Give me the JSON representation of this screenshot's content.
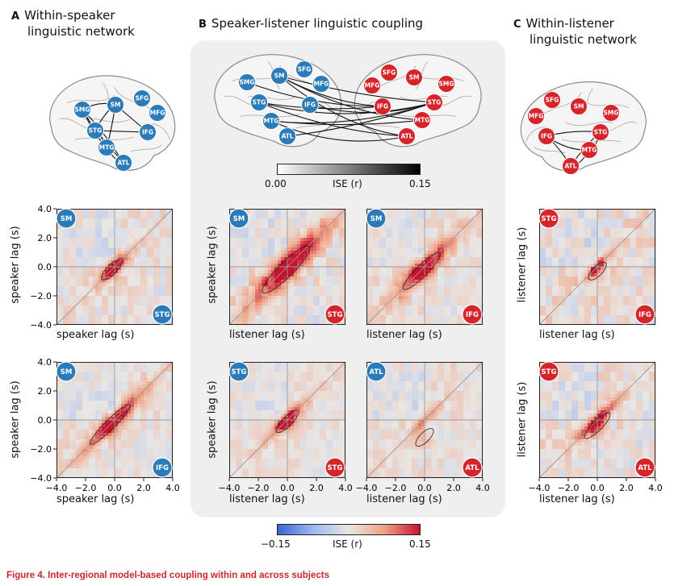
{
  "panels": {
    "A": {
      "letter": "A",
      "title_line1": "Within-speaker",
      "title_line2": "linguistic network"
    },
    "B": {
      "letter": "B",
      "title": "Speaker-listener linguistic coupling"
    },
    "C": {
      "letter": "C",
      "title_line1": "Within-listener",
      "title_line2": "linguistic network"
    }
  },
  "colors": {
    "speaker": "#2b7bb9",
    "listener": "#d6242b",
    "panel_bg": "#efefef",
    "caption": "#c8272c"
  },
  "brain_nodes": {
    "A": [
      "SMG",
      "SM",
      "SFG",
      "MFG",
      "STG",
      "IFG",
      "MTG",
      "ATL"
    ],
    "B_left": [
      "SM",
      "SFG",
      "SMG",
      "MFG",
      "STG",
      "IFG",
      "MTG",
      "ATL"
    ],
    "B_right": [
      "SFG",
      "SM",
      "MFG",
      "SMG",
      "IFG",
      "STG",
      "MTG",
      "ATL"
    ],
    "C": [
      "SFG",
      "SM",
      "MFG",
      "SMG",
      "IFG",
      "STG",
      "MTG",
      "ATL"
    ]
  },
  "gray_colorbar": {
    "min_label": "0.00",
    "max_label": "0.15",
    "label": "ISE (r)"
  },
  "diverging_colorbar": {
    "min_label": "−0.15",
    "max_label": "0.15",
    "label": "ISE (r)"
  },
  "axes": {
    "ticks": [
      "−4.0",
      "−2.0",
      "0.0",
      "2.0",
      "4.0"
    ],
    "speaker_lag": "speaker lag (s)",
    "listener_lag": "listener lag (s)"
  },
  "plots": [
    {
      "id": "A1",
      "top_region": "SM",
      "top_side": "speaker",
      "bottom_region": "STG",
      "bottom_side": "speaker"
    },
    {
      "id": "A2",
      "top_region": "SM",
      "top_side": "speaker",
      "bottom_region": "IFG",
      "bottom_side": "speaker"
    },
    {
      "id": "B1",
      "top_region": "SM",
      "top_side": "speaker",
      "bottom_region": "STG",
      "bottom_side": "listener"
    },
    {
      "id": "B2",
      "top_region": "SM",
      "top_side": "speaker",
      "bottom_region": "IFG",
      "bottom_side": "listener"
    },
    {
      "id": "B3",
      "top_region": "STG",
      "top_side": "speaker",
      "bottom_region": "STG",
      "bottom_side": "listener"
    },
    {
      "id": "B4",
      "top_region": "ATL",
      "top_side": "speaker",
      "bottom_region": "ATL",
      "bottom_side": "listener"
    },
    {
      "id": "C1",
      "top_region": "STG",
      "top_side": "listener",
      "bottom_region": "IFG",
      "bottom_side": "listener"
    },
    {
      "id": "C2",
      "top_region": "STG",
      "top_side": "listener",
      "bottom_region": "ATL",
      "bottom_side": "listener"
    }
  ],
  "caption": "Figure 4.  Inter-regional model-based coupling within and across subjects"
}
